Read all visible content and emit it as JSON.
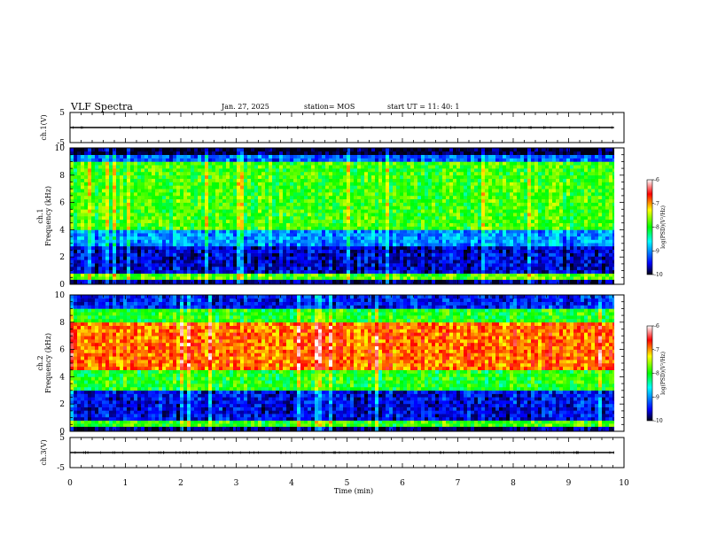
{
  "header": {
    "title": "VLF Spectra",
    "date": "Jan. 27, 2025",
    "station": "station= MOS",
    "start": "start  UT =   11: 40: 1"
  },
  "chart_data": [
    {
      "type": "line",
      "name": "ch1-waveform",
      "ylabel": "ch.1(V)",
      "ylim": [
        -5,
        5
      ],
      "y_ticks": [
        "5",
        "-5"
      ],
      "x": [
        0,
        9.82
      ],
      "values": [
        0,
        0
      ]
    },
    {
      "type": "heatmap",
      "name": "ch1-spectrogram",
      "ylabel": "ch.1 Frequency (kHz)",
      "ylim": [
        0,
        10
      ],
      "y_ticks": [
        "0",
        "2",
        "4",
        "6",
        "8",
        "10"
      ],
      "xlim": [
        0,
        10
      ],
      "data_extent_min": 9.82,
      "bands": [
        {
          "f_from": 0.0,
          "f_to": 0.35,
          "level": -9.8
        },
        {
          "f_from": 0.35,
          "f_to": 0.8,
          "level": -7.8
        },
        {
          "f_from": 0.8,
          "f_to": 2.8,
          "level": -9.6
        },
        {
          "f_from": 2.8,
          "f_to": 4.0,
          "level": -9.0
        },
        {
          "f_from": 4.0,
          "f_to": 9.0,
          "level": -7.9
        },
        {
          "f_from": 9.0,
          "f_to": 9.5,
          "level": -9.2
        },
        {
          "f_from": 9.5,
          "f_to": 10.0,
          "level": -10.0
        }
      ],
      "colorbar": {
        "label": "log(PSD)(V²/Hz)",
        "range": [
          -10,
          -6
        ],
        "ticks": [
          "-6",
          "-7",
          "-8",
          "-9",
          "-10"
        ]
      }
    },
    {
      "type": "heatmap",
      "name": "ch2-spectrogram",
      "ylabel": "ch.2 Frequency (kHz)",
      "ylim": [
        0,
        10
      ],
      "y_ticks": [
        "0",
        "2",
        "4",
        "6",
        "8",
        "10"
      ],
      "xlim": [
        0,
        10
      ],
      "data_extent_min": 9.82,
      "bands": [
        {
          "f_from": 0.0,
          "f_to": 0.35,
          "level": -9.8
        },
        {
          "f_from": 0.35,
          "f_to": 0.8,
          "level": -7.9
        },
        {
          "f_from": 0.8,
          "f_to": 3.0,
          "level": -9.5
        },
        {
          "f_from": 3.0,
          "f_to": 4.5,
          "level": -8.0
        },
        {
          "f_from": 4.5,
          "f_to": 8.0,
          "level": -6.9
        },
        {
          "f_from": 8.0,
          "f_to": 9.0,
          "level": -8.0
        },
        {
          "f_from": 9.0,
          "f_to": 10.0,
          "level": -9.4
        }
      ],
      "colorbar": {
        "label": "log(PSD)(V²/Hz)",
        "range": [
          -10,
          -6
        ],
        "ticks": [
          "-6",
          "-7",
          "-8",
          "-9",
          "-10"
        ]
      }
    },
    {
      "type": "line",
      "name": "ch3-waveform",
      "ylabel": "ch.3(V)",
      "ylim": [
        -5,
        5
      ],
      "y_ticks": [
        "5",
        "-5"
      ],
      "x": [
        0,
        9.82
      ],
      "values": [
        0,
        0
      ]
    }
  ],
  "x_axis": {
    "label": "Time (min)",
    "ticks": [
      "0",
      "1",
      "2",
      "3",
      "4",
      "5",
      "6",
      "7",
      "8",
      "9",
      "10"
    ]
  },
  "colors": {
    "colormap": [
      "#000020",
      "#0000ff",
      "#00ffff",
      "#00ff00",
      "#ffff00",
      "#ff0000",
      "#ffffff"
    ]
  }
}
